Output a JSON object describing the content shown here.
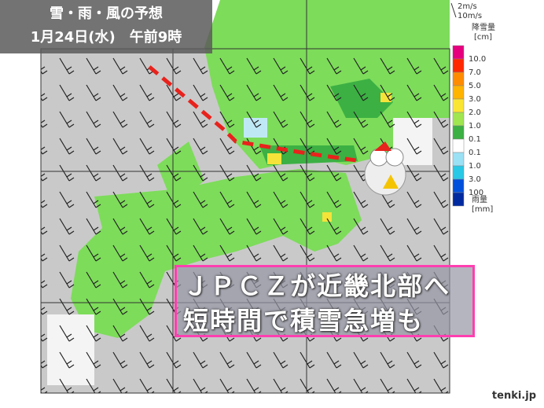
{
  "title": {
    "line1": "雪・雨・風の予想",
    "line2": "1月24日(水)　午前9時"
  },
  "wind_legend": [
    "2m/s",
    "10m/s"
  ],
  "legend": {
    "snow_title": "降雪量",
    "snow_unit": "[cm]",
    "rain_title": "雨量",
    "rain_unit": "[mm]",
    "labels": [
      "10.0",
      "7.0",
      "5.0",
      "3.0",
      "2.0",
      "1.0",
      "0.1",
      "0.1",
      "1.0",
      "3.0",
      "100"
    ]
  },
  "callout": {
    "line1": "ＪＰＣＺが近畿北部へ",
    "line2": "短時間で積雪急増も"
  },
  "brand": "tenki.jp"
}
